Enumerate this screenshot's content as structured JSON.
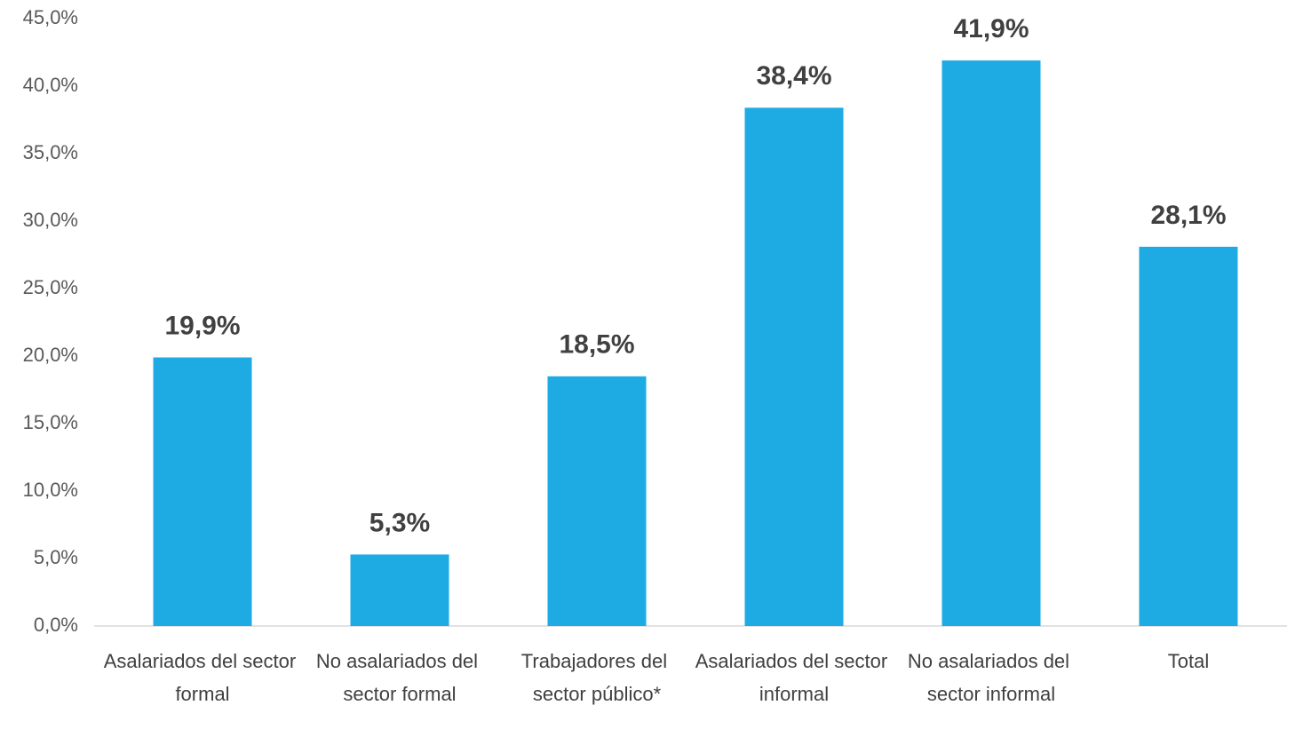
{
  "chart_data": {
    "type": "bar",
    "categories": [
      "Asalariados del sector formal",
      "No asalariados del sector formal",
      "Trabajadores del sector público*",
      "Asalariados del sector informal",
      "No asalariados del sector informal",
      "Total"
    ],
    "values": [
      19.9,
      5.3,
      18.5,
      38.4,
      41.9,
      28.1
    ],
    "value_labels": [
      "19,9%",
      "5,3%",
      "18,5%",
      "38,4%",
      "41,9%",
      "28,1%"
    ],
    "color": "#1eabe3",
    "ylim": [
      0,
      45
    ],
    "yticks": [
      {
        "value": 0,
        "label": "0,0%"
      },
      {
        "value": 5,
        "label": "5,0%"
      },
      {
        "value": 10,
        "label": "10,0%"
      },
      {
        "value": 15,
        "label": "15,0%"
      },
      {
        "value": 20,
        "label": "20,0%"
      },
      {
        "value": 25,
        "label": "25,0%"
      },
      {
        "value": 30,
        "label": "30,0%"
      },
      {
        "value": 35,
        "label": "35,0%"
      },
      {
        "value": 40,
        "label": "40,0%"
      },
      {
        "value": 45,
        "label": "45,0%"
      }
    ],
    "grid": false
  }
}
